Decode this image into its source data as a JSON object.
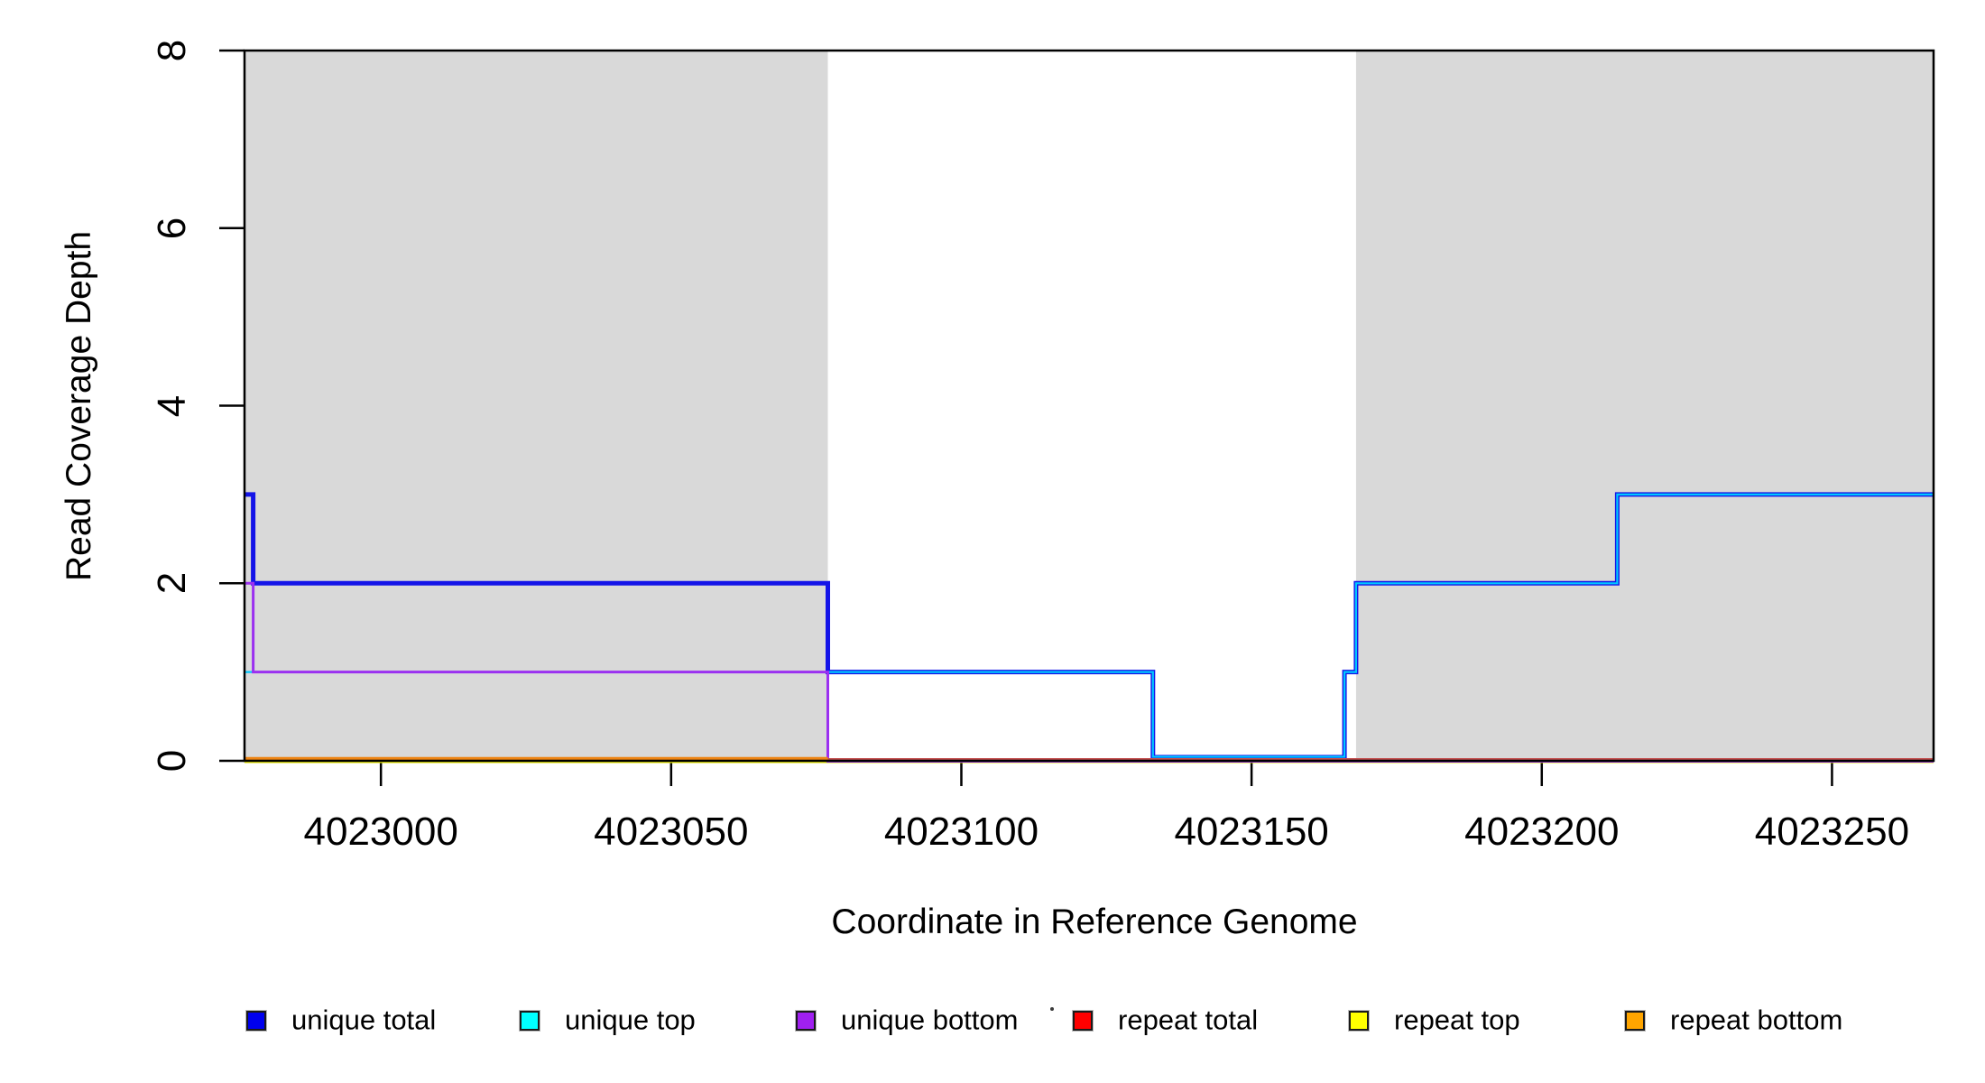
{
  "figure": {
    "background": "#FFFFFF",
    "plot_background": "#FFFFFF"
  },
  "axes": {
    "x": {
      "title": "Coordinate in Reference Genome",
      "tick_labels": [
        "4023000",
        "4023050",
        "4023100",
        "4023150",
        "4023200",
        "4023250"
      ],
      "tick_values": [
        4023000,
        4023050,
        4023100,
        4023150,
        4023200,
        4023250
      ],
      "domain": [
        4022976.5,
        4023267.5
      ]
    },
    "y": {
      "title": "Read Coverage Depth",
      "tick_labels": [
        "0",
        "2",
        "4",
        "6",
        "8"
      ],
      "tick_values": [
        0,
        2,
        4,
        6,
        8
      ],
      "domain": [
        0,
        8
      ]
    }
  },
  "chart_data": {
    "type": "line",
    "step": true,
    "title": "",
    "xlabel": "Coordinate in Reference Genome",
    "ylabel": "Read Coverage Depth",
    "xlim": [
      4022976.5,
      4023267.5
    ],
    "ylim": [
      0,
      8
    ],
    "grid": false,
    "legend_position": "bottom",
    "shaded_regions": [
      {
        "name": "repeat-region-left",
        "x0": 4022976.5,
        "x1": 4023077,
        "color": "#D9D9D9"
      },
      {
        "name": "repeat-region-right",
        "x0": 4023168,
        "x1": 4023267.5,
        "color": "#D9D9D9"
      }
    ],
    "series": [
      {
        "name": "unique total",
        "color": "#0000EE",
        "points": [
          [
            4022976.5,
            3
          ],
          [
            4022978,
            3
          ],
          [
            4022978,
            2
          ],
          [
            4023077,
            2
          ],
          [
            4023077,
            1
          ],
          [
            4023133,
            1
          ],
          [
            4023133,
            0
          ],
          [
            4023166,
            0
          ],
          [
            4023166,
            1
          ],
          [
            4023168,
            1
          ],
          [
            4023168,
            2
          ],
          [
            4023213,
            2
          ],
          [
            4023213,
            3
          ],
          [
            4023267.5,
            3
          ]
        ]
      },
      {
        "name": "unique top",
        "color": "#00FFFF",
        "points": [
          [
            4022976.5,
            1
          ],
          [
            4023133,
            1
          ],
          [
            4023133,
            0
          ],
          [
            4023166,
            0
          ],
          [
            4023166,
            1
          ],
          [
            4023168,
            1
          ],
          [
            4023168,
            2
          ],
          [
            4023213,
            2
          ],
          [
            4023213,
            3
          ],
          [
            4023267.5,
            3
          ]
        ]
      },
      {
        "name": "unique bottom",
        "color": "#A020F0",
        "points": [
          [
            4022976.5,
            2
          ],
          [
            4022978,
            2
          ],
          [
            4022978,
            1
          ],
          [
            4023077,
            1
          ],
          [
            4023077,
            0
          ],
          [
            4023267.5,
            0
          ]
        ]
      },
      {
        "name": "repeat total",
        "color": "#FF0000",
        "points": [
          [
            4022976.5,
            0
          ],
          [
            4023267.5,
            0
          ]
        ]
      },
      {
        "name": "repeat top",
        "color": "#FFFF00",
        "points": [
          [
            4022976.5,
            0
          ],
          [
            4023267.5,
            0
          ]
        ]
      },
      {
        "name": "repeat bottom",
        "color": "#FFA500",
        "points": [
          [
            4022976.5,
            0
          ],
          [
            4023077,
            0
          ]
        ]
      }
    ]
  },
  "legend": {
    "entries": [
      {
        "label": "unique total",
        "color": "#0000EE"
      },
      {
        "label": "unique top",
        "color": "#00FFFF"
      },
      {
        "label": "unique bottom",
        "color": "#A020F0"
      },
      {
        "label": "repeat total",
        "color": "#FF0000"
      },
      {
        "label": "repeat top",
        "color": "#FFFF00"
      },
      {
        "label": "repeat bottom",
        "color": "#FFA500"
      }
    ]
  }
}
